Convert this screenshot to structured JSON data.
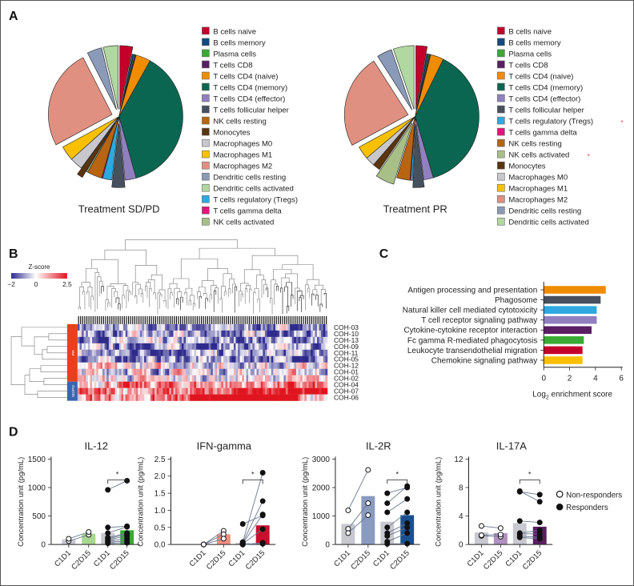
{
  "panels": {
    "a": "A",
    "b": "B",
    "c": "C",
    "d": "D"
  },
  "chart_data": [
    {
      "type": "pie",
      "id": "pie_sdpd",
      "title": "Treatment SD/PD",
      "slices": [
        {
          "label": "B cells naive",
          "value": 3.5,
          "color": "#c4002a",
          "exploded": true
        },
        {
          "label": "B cells memory",
          "value": 0.5,
          "color": "#114a80",
          "exploded": false
        },
        {
          "label": "Plasma cells",
          "value": 0.3,
          "color": "#3aaa35",
          "exploded": false
        },
        {
          "label": "T cells CD8",
          "value": 0.3,
          "color": "#5a1e64",
          "exploded": false
        },
        {
          "label": "T cells CD4 (naive)",
          "value": 4,
          "color": "#f08c00",
          "exploded": false
        },
        {
          "label": "T cells CD4 (memory)",
          "value": 40,
          "color": "#0a6650",
          "exploded": false
        },
        {
          "label": "T cells CD4 (effector)",
          "value": 3,
          "color": "#9080c0",
          "exploded": false
        },
        {
          "label": "T cells follicular helper",
          "value": 3.5,
          "color": "#46505e",
          "exploded": true
        },
        {
          "label": "T cells regulatory (Tregs)",
          "value": 2.5,
          "color": "#2ea8e0",
          "exploded": false
        },
        {
          "label": "T cells gamma delta",
          "value": 0.3,
          "color": "#e0147c",
          "exploded": false
        },
        {
          "label": "NK cells resting",
          "value": 4,
          "color": "#b86410",
          "exploded": false
        },
        {
          "label": "NK cells activated",
          "value": 0.4,
          "color": "#a8c088",
          "exploded": false
        },
        {
          "label": "Monocytes",
          "value": 1.6,
          "color": "#5a3510",
          "exploded": true
        },
        {
          "label": "Macrophages M0",
          "value": 3.5,
          "color": "#c8c8cc",
          "exploded": false
        },
        {
          "label": "Macrophages M1",
          "value": 4,
          "color": "#f8c000",
          "exploded": false
        },
        {
          "label": "Macrophages M2",
          "value": 27,
          "color": "#e09080",
          "exploded": true
        },
        {
          "label": "Dendritic cells resting",
          "value": 4,
          "color": "#8a9ab8",
          "exploded": true
        },
        {
          "label": "Dendritic cells activated",
          "value": 4,
          "color": "#b0d8a0",
          "exploded": true
        }
      ],
      "legend": [
        "B cells naive",
        "B cells memory",
        "Plasma cells",
        "T cells CD8",
        "T cells CD4 (naive)",
        "T cells CD4 (memory)",
        "T cells CD4 (effector)",
        "T cells follicular helper",
        "NK cells resting",
        "Monocytes",
        "Macrophages M0",
        "Macrophages M1",
        "Macrophages M2",
        "Dendritic cells resting",
        "Dendritic cells activated",
        "T cells regulatory (Tregs)",
        "T cells gamma delta",
        "NK cells activated"
      ],
      "legend_marks": []
    },
    {
      "type": "pie",
      "id": "pie_pr",
      "title": "Treatment PR",
      "slices": [
        {
          "label": "B cells naive",
          "value": 3,
          "color": "#c4002a",
          "exploded": true
        },
        {
          "label": "B cells memory",
          "value": 0.5,
          "color": "#114a80",
          "exploded": false
        },
        {
          "label": "Plasma cells",
          "value": 0.3,
          "color": "#3aaa35",
          "exploded": false
        },
        {
          "label": "T cells CD8",
          "value": 0.3,
          "color": "#5a1e64",
          "exploded": false
        },
        {
          "label": "T cells CD4 (naive)",
          "value": 3.5,
          "color": "#f08c00",
          "exploded": false
        },
        {
          "label": "T cells CD4 (memory)",
          "value": 40,
          "color": "#0a6650",
          "exploded": false
        },
        {
          "label": "T cells CD4 (effector)",
          "value": 2.5,
          "color": "#9080c0",
          "exploded": false
        },
        {
          "label": "T cells follicular helper",
          "value": 3,
          "color": "#46505e",
          "exploded": true
        },
        {
          "label": "T cells regulatory (Tregs)",
          "value": 0.5,
          "color": "#2ea8e0",
          "exploded": false
        },
        {
          "label": "T cells gamma delta",
          "value": 0.2,
          "color": "#e0147c",
          "exploded": false
        },
        {
          "label": "NK cells resting",
          "value": 3.5,
          "color": "#b86410",
          "exploded": false
        },
        {
          "label": "NK cells activated",
          "value": 5,
          "color": "#a8c088",
          "exploded": true
        },
        {
          "label": "Monocytes",
          "value": 2,
          "color": "#5a3510",
          "exploded": false
        },
        {
          "label": "Macrophages M0",
          "value": 2.5,
          "color": "#c8c8cc",
          "exploded": false
        },
        {
          "label": "Macrophages M1",
          "value": 3.5,
          "color": "#f8c000",
          "exploded": false
        },
        {
          "label": "Macrophages M2",
          "value": 25,
          "color": "#e09080",
          "exploded": true
        },
        {
          "label": "Dendritic cells resting",
          "value": 4,
          "color": "#8a9ab8",
          "exploded": true
        },
        {
          "label": "Dendritic cells activated",
          "value": 5.5,
          "color": "#b0d8a0",
          "exploded": true
        }
      ],
      "legend": [
        "B cells naive",
        "B cells memory",
        "Plasma cells",
        "T cells CD8",
        "T cells CD4 (naive)",
        "T cells CD4 (memory)",
        "T cells CD4 (effector)",
        "T cells follicular helper",
        "T cells regulatory (Tregs)",
        "T cells gamma delta",
        "NK cells resting",
        "NK cells activated",
        "Monocytes",
        "Macrophages M0",
        "Macrophages M1",
        "Macrophages M2",
        "Dendritic cells resting",
        "Dendritic cells activated"
      ],
      "legend_marks": [
        "T cells regulatory (Tregs)",
        "NK cells activated"
      ],
      "mark_symbol": "*"
    },
    {
      "type": "heatmap",
      "id": "heatmap",
      "colorbar_title": "Z-score",
      "colorbar_ticks": [
        "−2",
        "0",
        "2.5"
      ],
      "range": [
        -2,
        2.5
      ],
      "colors": {
        "low": "#2e2a8c",
        "mid": "#ffffff",
        "high": "#e0141e"
      },
      "rows": [
        "COH-03",
        "COH-10",
        "COH-13",
        "COH-09",
        "COH-11",
        "COH-05",
        "COH-12",
        "COH-01",
        "COH-02",
        "COH-04",
        "COH-07",
        "COH-06"
      ],
      "groups": [
        {
          "label": "PR",
          "rows": 9,
          "color": "#e8401c"
        },
        {
          "label": "SD/PD",
          "rows": 3,
          "color": "#3a63b0"
        }
      ],
      "n_columns": 120
    },
    {
      "type": "bar",
      "id": "enrichment",
      "categories": [
        "Antigen processing and presentation",
        "Phagosome",
        "Natural killer cell mediated cytotoxicity",
        "T cell receptor signaling pathway",
        "Cytokine-cytokine receptor interaction",
        "Fc gamma R-mediated phagocytosis",
        "Leukocyte transendothelial migration",
        "Chemokine signaling pathway"
      ],
      "values": [
        4.8,
        4.4,
        4.1,
        4.1,
        3.7,
        3.1,
        3.0,
        3.0
      ],
      "colors": [
        "#f08c00",
        "#46505e",
        "#2ea8e0",
        "#9080c0",
        "#5a1e64",
        "#3aaa35",
        "#c4002a",
        "#f8c000"
      ],
      "xlabel_main": "Log",
      "xlabel_sub": "2",
      "xlabel_rest": " enrichment score",
      "xlim": [
        0,
        6
      ],
      "xticks": [
        "0",
        "2",
        "4",
        "6"
      ]
    },
    {
      "type": "bar",
      "id": "il12",
      "title": "IL-12",
      "ylabel": "Concentration unit (pg/mL)",
      "ylim": [
        0,
        1500
      ],
      "yticks": [
        "0",
        "500",
        "1000",
        "1500"
      ],
      "categories": [
        "C1D1",
        "C2D15",
        "C1D1",
        "C2D15"
      ],
      "values": [
        90,
        190,
        200,
        250
      ],
      "colors": [
        "#c8c8d0",
        "#a8d890",
        "#c8c8d0",
        "#3aaa35"
      ],
      "nonresponders": {
        "C1D1": [
          60,
          100
        ],
        "C2D15": [
          170,
          220
        ]
      },
      "responders": {
        "C1D1": [
          960,
          300,
          200,
          120,
          100,
          80,
          60,
          40,
          20
        ],
        "C2D15": [
          1120,
          320,
          310,
          200,
          180,
          150,
          100,
          60,
          30
        ]
      },
      "significance": "*"
    },
    {
      "type": "bar",
      "id": "ifng",
      "title": "IFN-gamma",
      "ylabel": "Concentration unit (pg/mL)",
      "ylim": [
        0,
        2.5
      ],
      "yticks": [
        "0.0",
        "0.5",
        "1.0",
        "1.5",
        "2.0",
        "2.5"
      ],
      "categories": [
        "C1D1",
        "C2D15",
        "C1D1",
        "C2D15"
      ],
      "values": [
        0.01,
        0.3,
        0.05,
        0.56
      ],
      "colors": [
        "#c8c8d0",
        "#f09080",
        "#c8c8d0",
        "#c8102e"
      ],
      "nonresponders": {
        "C1D1": [
          0,
          0,
          0
        ],
        "C2D15": [
          0.4,
          0.3,
          0.17
        ]
      },
      "responders": {
        "C1D1": [
          0.6,
          0.07,
          0.05,
          0.03,
          0.02,
          0,
          0
        ],
        "C2D15": [
          0.85,
          2.1,
          1.27,
          0.88,
          0.45,
          0.05,
          0.02
        ]
      },
      "significance": "*"
    },
    {
      "type": "bar",
      "id": "il2r",
      "title": "IL-2R",
      "ylabel": "Concentration unit (pg/mL)",
      "ylim": [
        0,
        3000
      ],
      "yticks": [
        "0",
        "1000",
        "2000",
        "3000"
      ],
      "categories": [
        "C1D1",
        "C2D15",
        "C1D1",
        "C2D15"
      ],
      "values": [
        720,
        1700,
        800,
        1030
      ],
      "colors": [
        "#c8c8d0",
        "#8a9bc0",
        "#c8c8d0",
        "#1a5090"
      ],
      "nonresponders": {
        "C1D1": [
          1200,
          550,
          400
        ],
        "C2D15": [
          2620,
          1450,
          1030
        ]
      },
      "responders": {
        "C1D1": [
          1800,
          1450,
          1130,
          600,
          400,
          300,
          100,
          20
        ],
        "C2D15": [
          2000,
          2050,
          1600,
          1130,
          750,
          600,
          400,
          30
        ]
      },
      "significance": "*"
    },
    {
      "type": "bar",
      "id": "il17a",
      "title": "IL-17A",
      "ylabel": "Concentration unit (pg/mL)",
      "ylim": [
        0,
        12
      ],
      "yticks": [
        "0",
        "4",
        "8",
        "12"
      ],
      "categories": [
        "C1D1",
        "C2D15",
        "C1D1",
        "C2D15"
      ],
      "values": [
        1.7,
        1.6,
        3.0,
        2.5
      ],
      "colors": [
        "#c8c8d0",
        "#b090c0",
        "#c8c8d0",
        "#5a1e64"
      ],
      "nonresponders": {
        "C1D1": [
          2.6,
          1.2,
          1.3
        ],
        "C2D15": [
          2.3,
          1.1,
          1.4
        ]
      },
      "responders": {
        "C1D1": [
          7.5,
          7.4,
          3.3,
          1.6,
          1.5,
          1.2,
          1.0
        ],
        "C2D15": [
          6.0,
          7.0,
          3.1,
          2.0,
          1.5,
          1.0,
          0.8
        ]
      },
      "significance": "*"
    }
  ],
  "legend_d": {
    "nonresponders": "Non-responders",
    "responders": "Responders"
  }
}
